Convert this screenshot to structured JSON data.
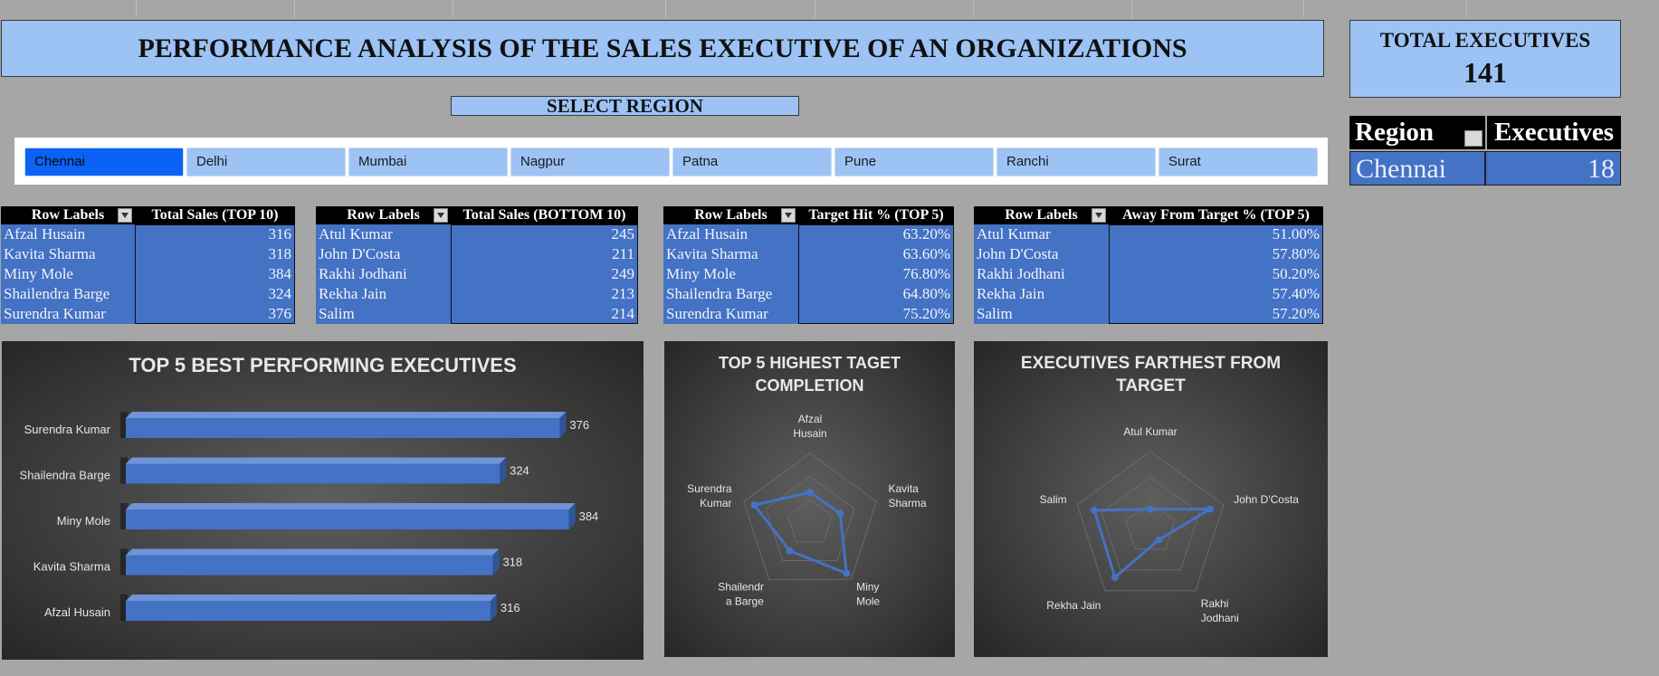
{
  "header": {
    "title": "PERFORMANCE ANALYSIS OF THE SALES EXECUTIVE OF AN ORGANIZATIONS",
    "total_label": "TOTAL EXECUTIVES",
    "total_value": "141"
  },
  "region_table": {
    "col1": "Region",
    "col2": "Executives",
    "region": "Chennai",
    "executives": "18"
  },
  "slicer": {
    "label": "SELECT REGION",
    "selected": "Chennai",
    "items": [
      "Chennai",
      "Delhi",
      "Mumbai",
      "Nagpur",
      "Patna",
      "Pune",
      "Ranchi",
      "Surat"
    ]
  },
  "pivot_tables": [
    {
      "col1": "Row Labels",
      "col2": "Total Sales (TOP 10)",
      "rows": [
        [
          "Afzal Husain",
          "316"
        ],
        [
          "Kavita Sharma",
          "318"
        ],
        [
          "Miny Mole",
          "384"
        ],
        [
          "Shailendra Barge",
          "324"
        ],
        [
          "Surendra Kumar",
          "376"
        ]
      ]
    },
    {
      "col1": "Row Labels",
      "col2": "Total Sales (BOTTOM 10)",
      "rows": [
        [
          "Atul Kumar",
          "245"
        ],
        [
          "John D'Costa",
          "211"
        ],
        [
          "Rakhi Jodhani",
          "249"
        ],
        [
          "Rekha Jain",
          "213"
        ],
        [
          "Salim",
          "214"
        ]
      ]
    },
    {
      "col1": "Row Labels",
      "col2": "Target Hit % (TOP 5)",
      "rows": [
        [
          "Afzal Husain",
          "63.20%"
        ],
        [
          "Kavita Sharma",
          "63.60%"
        ],
        [
          "Miny Mole",
          "76.80%"
        ],
        [
          "Shailendra Barge",
          "64.80%"
        ],
        [
          "Surendra Kumar",
          "75.20%"
        ]
      ]
    },
    {
      "col1": "Row Labels",
      "col2": "Away From Target % (TOP 5)",
      "rows": [
        [
          "Atul Kumar",
          "51.00%"
        ],
        [
          "John D'Costa",
          "57.80%"
        ],
        [
          "Rakhi Jodhani",
          "50.20%"
        ],
        [
          "Rekha Jain",
          "57.40%"
        ],
        [
          "Salim",
          "57.20%"
        ]
      ]
    }
  ],
  "chart_data": [
    {
      "type": "bar",
      "orientation": "horizontal",
      "title": "TOP 5 BEST PERFORMING EXECUTIVES",
      "categories": [
        "Surendra Kumar",
        "Shailendra Barge",
        "Miny Mole",
        "Kavita Sharma",
        "Afzal Husain"
      ],
      "values": [
        376,
        324,
        384,
        318,
        316
      ],
      "data_labels": true,
      "color": "#4472c4"
    },
    {
      "type": "radar",
      "title_lines": [
        "TOP 5 HIGHEST TAGET",
        "COMPLETION"
      ],
      "categories": [
        [
          "Afzal",
          "Husain"
        ],
        [
          "Kavita",
          "Sharma"
        ],
        [
          "Miny",
          "Mole"
        ],
        [
          "Shailendr",
          "a Barge"
        ],
        [
          "Surendra",
          "Kumar"
        ]
      ],
      "values": [
        63.2,
        63.6,
        76.8,
        64.8,
        75.2
      ],
      "rmin": 50,
      "rmax": 80,
      "color": "#4472c4"
    },
    {
      "type": "radar",
      "title_lines": [
        "EXECUTIVES FARTHEST FROM",
        "TARGET"
      ],
      "categories": [
        [
          "Atul Kumar"
        ],
        [
          "John D'Costa"
        ],
        [
          "Rakhi",
          "Jodhani"
        ],
        [
          "Rekha Jain"
        ],
        [
          "Salim"
        ]
      ],
      "values": [
        51.0,
        57.8,
        50.2,
        57.4,
        57.2
      ],
      "rmin": 48,
      "rmax": 60,
      "color": "#4472c4"
    }
  ]
}
